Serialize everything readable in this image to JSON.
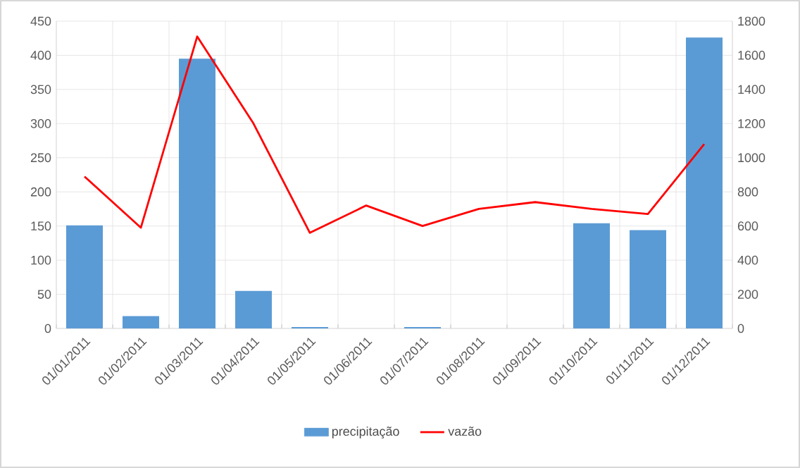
{
  "chart_data": {
    "type": "bar",
    "categories": [
      "01/01/2011",
      "01/02/2011",
      "01/03/2011",
      "01/04/2011",
      "01/05/2011",
      "01/06/2011",
      "01/07/2011",
      "01/08/2011",
      "01/09/2011",
      "01/10/2011",
      "01/11/2011",
      "01/12/2011"
    ],
    "series": [
      {
        "name": "precipitação",
        "color": "#5b9bd5",
        "values": [
          151,
          18,
          395,
          55,
          2,
          0,
          2,
          0,
          0,
          154,
          144,
          426
        ]
      },
      {
        "name": "vazão",
        "type": "line",
        "axis": "y2",
        "color": "#ff0000",
        "values": [
          890,
          590,
          1710,
          1200,
          560,
          720,
          600,
          700,
          740,
          700,
          670,
          1080
        ]
      }
    ],
    "ylim": [
      0,
      450
    ],
    "yticks": [
      0,
      50,
      100,
      150,
      200,
      250,
      300,
      350,
      400,
      450
    ],
    "y2lim": [
      0,
      1800
    ],
    "y2ticks": [
      0,
      200,
      400,
      600,
      800,
      1000,
      1200,
      1400,
      1600,
      1800
    ],
    "grid": true,
    "legend": "bottom",
    "marker": "none",
    "line_style": "solid"
  }
}
